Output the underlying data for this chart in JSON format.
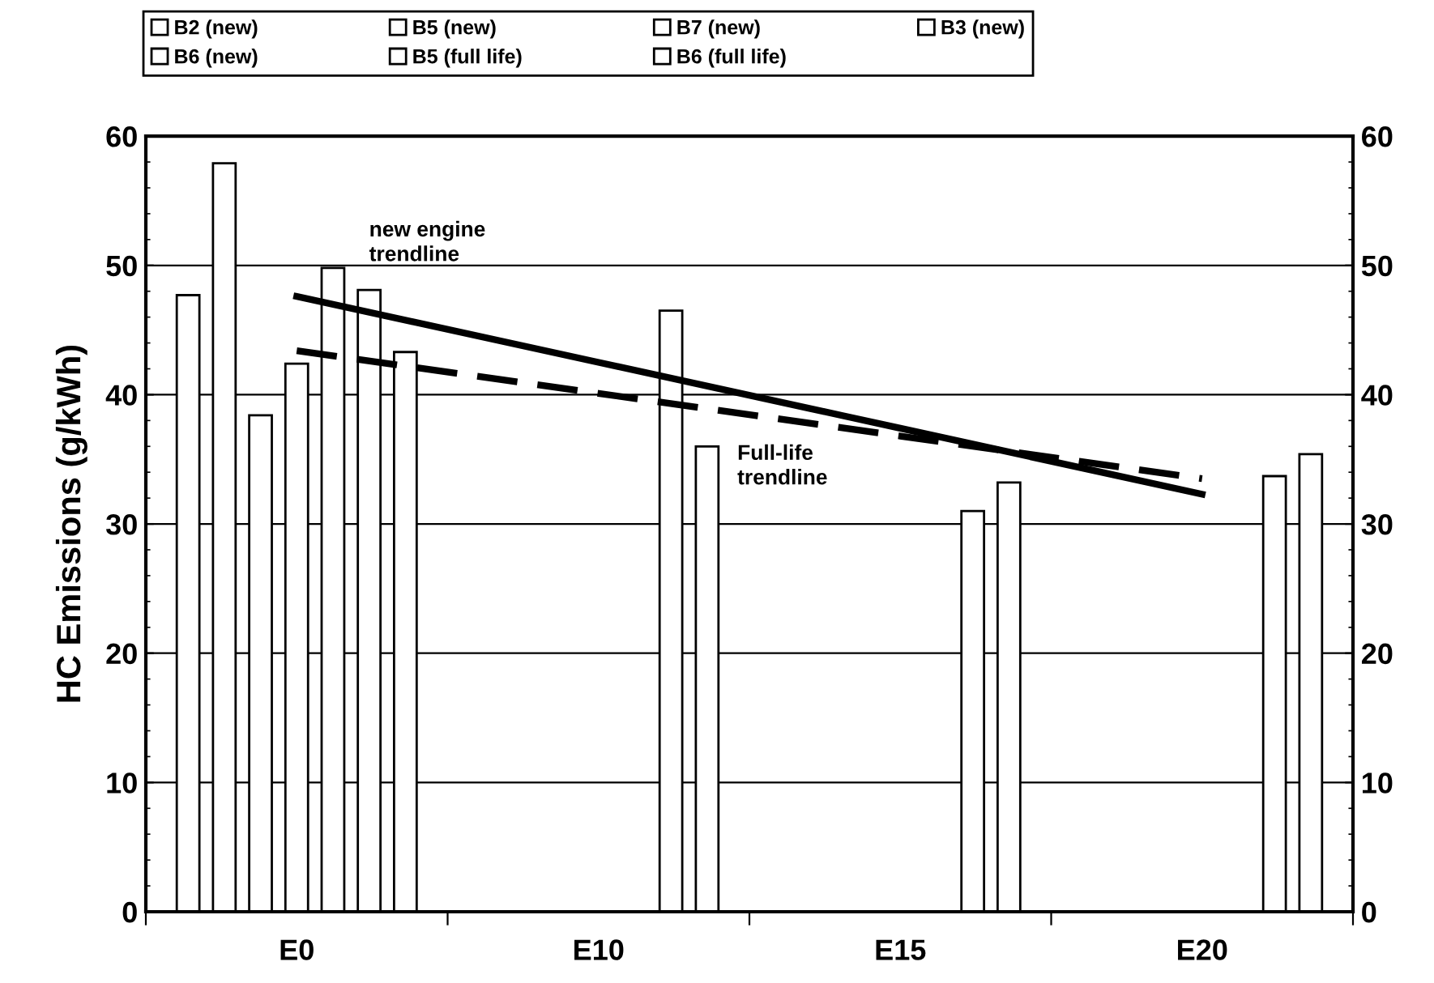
{
  "chart_data": {
    "type": "bar",
    "ylabel": "HC Emissions (g/kWh)",
    "categories": [
      "E0",
      "E10",
      "E15",
      "E20"
    ],
    "ylim": [
      0,
      60
    ],
    "yticks": [
      0,
      10,
      20,
      30,
      40,
      50,
      60
    ],
    "y2lim": [
      0,
      60
    ],
    "y2ticks": [
      0,
      10,
      20,
      30,
      40,
      50,
      60
    ],
    "grid": "y",
    "legend": "top",
    "series": [
      {
        "name": "B2 (new)",
        "color": "#ffffff",
        "values": [
          47.7,
          null,
          null,
          null
        ]
      },
      {
        "name": "B5 (new)",
        "color": "#ffffff",
        "values": [
          57.9,
          null,
          null,
          null
        ]
      },
      {
        "name": "B7 (new)",
        "color": "#ffffff",
        "values": [
          38.4,
          null,
          null,
          null
        ]
      },
      {
        "name": "B3 (new)",
        "color": "#ffffff",
        "values": [
          42.4,
          null,
          null,
          null
        ]
      },
      {
        "name": "B6 (new)",
        "color": "#ffffff",
        "values": [
          49.8,
          null,
          null,
          null
        ]
      },
      {
        "name": "B5 (full life)",
        "color": "#ffffff",
        "values": [
          48.1,
          46.5,
          31.0,
          33.7
        ]
      },
      {
        "name": "B6 (full life)",
        "color": "#ffffff",
        "values": [
          43.3,
          36.0,
          33.2,
          35.4
        ]
      },
      {
        "type": "line",
        "color": "#000000",
        "line_style": "solid",
        "values": [
          47.6,
          42.5,
          37.4,
          32.3
        ]
      },
      {
        "type": "line",
        "color": "#000000",
        "line_style": "dashed",
        "values": [
          43.4,
          40.1,
          36.8,
          33.5
        ]
      }
    ],
    "annotations": [
      "new engine\ntrendline",
      "Full-life\ntrendline"
    ]
  }
}
